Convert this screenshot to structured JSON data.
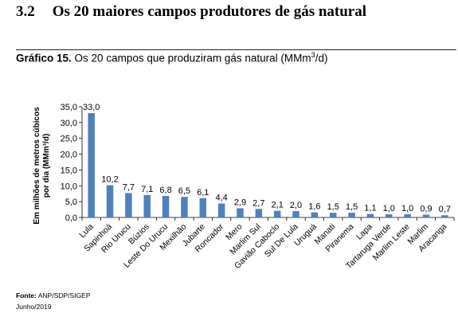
{
  "section": {
    "number": "3.2",
    "title": "Os 20 maiores campos produtores de gás natural"
  },
  "chart_heading": {
    "label": "Gráfico 15.",
    "text": "Os 20 campos que produziram gás natural (MMm",
    "superscript": "3",
    "suffix": "/d)"
  },
  "chart_data": {
    "type": "bar",
    "categories": [
      "Lula",
      "Sapinhoá",
      "Rio Urucu",
      "Búzios",
      "Leste Do Urucu",
      "Mexilhão",
      "Jubarte",
      "Roncador",
      "Mero",
      "Marlim Sul",
      "Gavião Caboclo",
      "Sul De Lula",
      "Uruguá",
      "Manati",
      "Piranema",
      "Lapa",
      "Tartaruga Verde",
      "Marlim Leste",
      "Marlim",
      "Aracanga"
    ],
    "values": [
      33.0,
      10.2,
      7.7,
      7.1,
      6.8,
      6.5,
      6.1,
      4.4,
      2.9,
      2.7,
      2.1,
      2.0,
      1.6,
      1.5,
      1.5,
      1.1,
      1.0,
      1.0,
      0.9,
      0.7
    ],
    "value_labels": [
      "33,0",
      "10,2",
      "7,7",
      "7,1",
      "6,8",
      "6,5",
      "6,1",
      "4,4",
      "2,9",
      "2,7",
      "2,1",
      "2,0",
      "1,6",
      "1,5",
      "1,5",
      "1,1",
      "1,0",
      "1,0",
      "0,9",
      "0,7"
    ],
    "ylabel_line1": "Em milhões de metros cúbicos",
    "ylabel_line2": "por dia (MMm³/d)",
    "ylim": [
      0,
      35
    ],
    "yticks": [
      "0,0",
      "5,0",
      "10,0",
      "15,0",
      "20,0",
      "25,0",
      "30,0",
      "35,0"
    ],
    "bar_color": "#4f81bd",
    "grid": false
  },
  "footer": {
    "source_label": "Fonte:",
    "source_text": " ANP/SDP/SIGEP",
    "date": "Junho/2019"
  }
}
